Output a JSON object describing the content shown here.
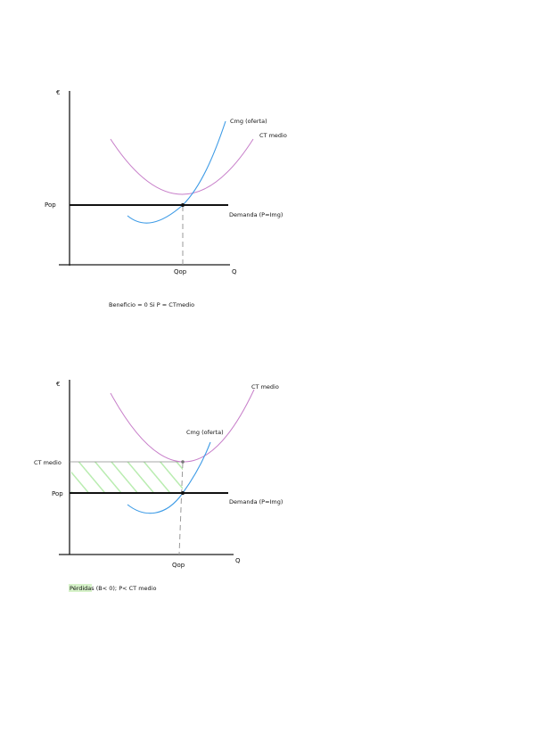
{
  "colors": {
    "axis": "#1a1a1a",
    "cost_curve": "#c77ec9",
    "marginal_cost": "#3d9be6",
    "dashed": "#9a9a9a",
    "hatch": "#b9ecb0",
    "highlight": "#d6f2c9"
  },
  "diagram1": {
    "y_axis_label": "€",
    "x_axis_label": "Q",
    "price_label": "Pop",
    "quantity_label": "Qop",
    "cmg_label": "Cmg (oferta)",
    "ctmedio_label": "CT medio",
    "demand_label": "Demanda (P=Img)",
    "caption": "Beneficio = 0   Si P = CTmedio"
  },
  "diagram2": {
    "y_axis_label": "€",
    "x_axis_label": "Q",
    "price_label": "Pop",
    "ctmedio_level_label": "CT medio",
    "quantity_label": "Qop",
    "cmg_label": "Cmg (oferta)",
    "ctmedio_label": "CT medio",
    "demand_label": "Demanda (P=Img)",
    "caption_highlight": "Pérdidas",
    "caption_rest": " (B< 0); P< CT medio"
  }
}
